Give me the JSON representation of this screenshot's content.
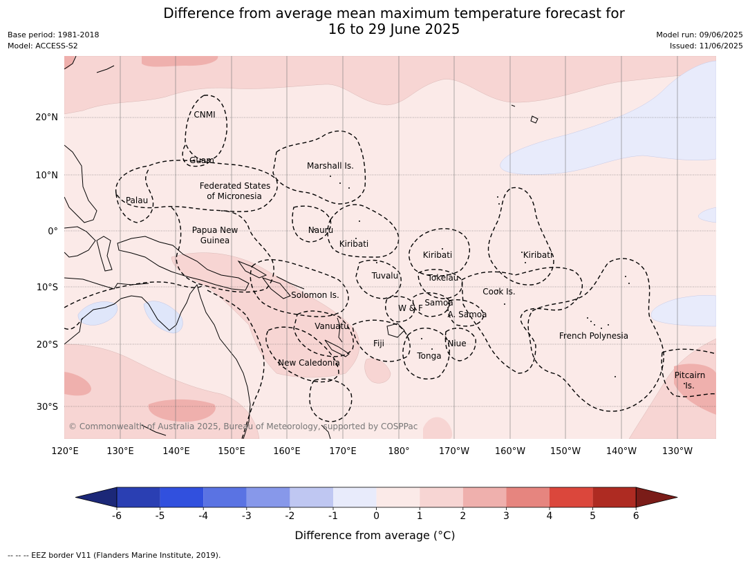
{
  "title_line1": "Difference from average mean maximum temperature forecast for",
  "title_line2": "16 to 29 June 2025",
  "meta_left": {
    "base_period": "Base period: 1981-2018",
    "model": "Model: ACCESS-S2"
  },
  "meta_right": {
    "model_run": "Model run: 09/06/2025",
    "issued": "Issued: 11/06/2025"
  },
  "copyright": "© Commonwealth of Australia 2025, Bureau of Meteorology, supported by COSPPac",
  "lat_ticks": [
    "20°N",
    "10°N",
    "0°",
    "10°S",
    "20°S",
    "30°S"
  ],
  "lon_ticks": [
    "120°E",
    "130°E",
    "140°E",
    "150°E",
    "160°E",
    "170°E",
    "180°",
    "170°W",
    "160°W",
    "150°W",
    "140°W",
    "130°W"
  ],
  "regions": [
    {
      "id": "cnmi",
      "label": "CNMI"
    },
    {
      "id": "guam",
      "label": "Guam"
    },
    {
      "id": "marshall",
      "label": "Marshall Is."
    },
    {
      "id": "fsm1",
      "label": "Federated States"
    },
    {
      "id": "fsm2",
      "label": "of Micronesia"
    },
    {
      "id": "palau",
      "label": "Palau"
    },
    {
      "id": "png1",
      "label": "Papua New"
    },
    {
      "id": "png2",
      "label": "Guinea"
    },
    {
      "id": "nauru",
      "label": "Nauru"
    },
    {
      "id": "kiribati_w",
      "label": "Kiribati"
    },
    {
      "id": "kiribati_c",
      "label": "Kiribati"
    },
    {
      "id": "kiribati_e",
      "label": "Kiribati"
    },
    {
      "id": "tuvalu",
      "label": "Tuvalu"
    },
    {
      "id": "tokelau",
      "label": "Tokelau"
    },
    {
      "id": "cook",
      "label": "Cook Is."
    },
    {
      "id": "solomon",
      "label": "Solomon Is."
    },
    {
      "id": "samoa",
      "label": "Samoa"
    },
    {
      "id": "wf",
      "label": "W & F"
    },
    {
      "id": "asamoa",
      "label": "A. Samoa"
    },
    {
      "id": "vanuatu",
      "label": "Vanuatu"
    },
    {
      "id": "fiji",
      "label": "Fiji"
    },
    {
      "id": "niue",
      "label": "Niue"
    },
    {
      "id": "fp",
      "label": "French Polynesia"
    },
    {
      "id": "tonga",
      "label": "Tonga"
    },
    {
      "id": "newcal",
      "label": "New Caledonia"
    },
    {
      "id": "pitcairn1",
      "label": "Pitcairn"
    },
    {
      "id": "pitcairn2",
      "label": "Is."
    }
  ],
  "colorbar": {
    "title": "Difference from average ($^\\circ$C)",
    "title_display": "Difference from average (°C)",
    "ticks": [
      "-6",
      "-5",
      "-4",
      "-3",
      "-2",
      "-1",
      "0",
      "1",
      "2",
      "3",
      "4",
      "5",
      "6"
    ],
    "colors": [
      "#2a3fb3",
      "#3150de",
      "#5a73e3",
      "#8798ea",
      "#bfc7f2",
      "#e8ebfb",
      "#fbeae8",
      "#f7d5d3",
      "#efb0ad",
      "#e6857f",
      "#db473c",
      "#ae2b22"
    ],
    "under_color": "#1c2878",
    "over_color": "#7a1c18"
  },
  "footer": "--  --  -- EEZ border V11 (Flanders Marine Institute, 2019)."
}
